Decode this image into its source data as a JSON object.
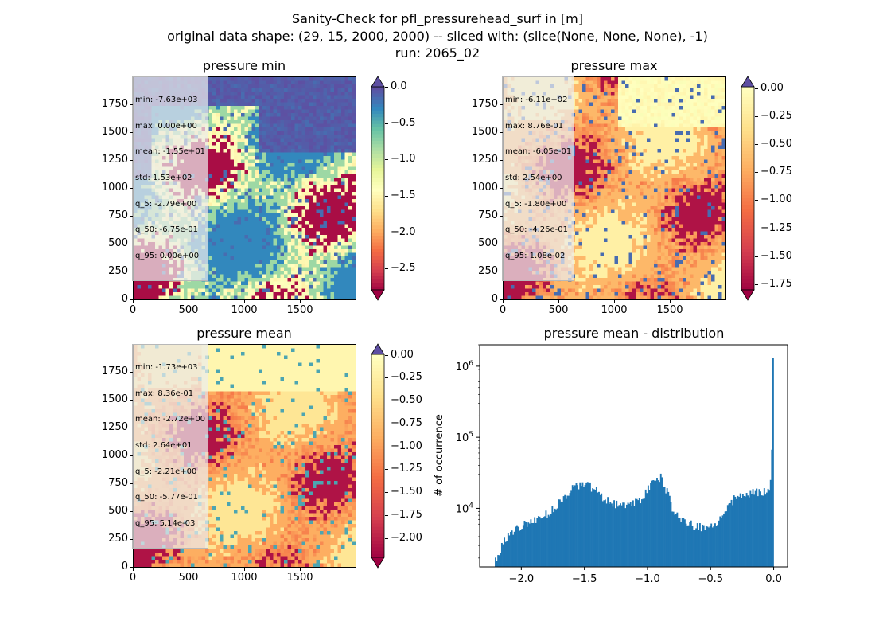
{
  "figure": {
    "title_lines": [
      "Sanity-Check for pfl_pressurehead_surf in [m]",
      "original data shape: (29, 15, 2000, 2000) -- sliced with: (slice(None, None, None), -1)",
      "run: 2065_02"
    ]
  },
  "panels": [
    {
      "title": "pressure min",
      "stats": [
        "min: -7.63e+03",
        "max: 0.00e+00",
        "mean: -1.55e+01",
        "std: 1.53e+02",
        "q_5: -2.79e+00",
        "q_50: -6.75e-01",
        "q_95: 0.00e+00"
      ],
      "x_ticks": [
        "0",
        "500",
        "1000",
        "1500"
      ],
      "y_ticks": [
        "0",
        "250",
        "500",
        "750",
        "1000",
        "1250",
        "1500",
        "1750"
      ],
      "colorbar_ticks": [
        "0.0",
        "−0.5",
        "−1.0",
        "−1.5",
        "−2.0",
        "−2.5"
      ],
      "colorbar_range": [
        -2.79,
        0.0
      ],
      "colorbar_extend": "both"
    },
    {
      "title": "pressure max",
      "stats": [
        "min: -6.11e+02",
        "max: 8.76e-01",
        "mean: -6.05e-01",
        "std: 2.54e+00",
        "q_5: -1.80e+00",
        "q_50: -4.26e-01",
        "q_95: 1.08e-02"
      ],
      "x_ticks": [
        "0",
        "500",
        "1000",
        "1500"
      ],
      "y_ticks": [
        "0",
        "250",
        "500",
        "750",
        "1000",
        "1250",
        "1500",
        "1750"
      ],
      "colorbar_ticks": [
        "0.00",
        "−0.25",
        "−0.50",
        "−0.75",
        "−1.00",
        "−1.25",
        "−1.50",
        "−1.75"
      ],
      "colorbar_range": [
        -1.8,
        0.0108
      ],
      "colorbar_extend": "both"
    },
    {
      "title": "pressure mean",
      "stats": [
        "min: -1.73e+03",
        "max: 8.36e-01",
        "mean: -2.72e+00",
        "std: 2.64e+01",
        "q_5: -2.21e+00",
        "q_50: -5.77e-01",
        "q_95: 5.14e-03"
      ],
      "x_ticks": [
        "0",
        "500",
        "1000",
        "1500"
      ],
      "y_ticks": [
        "0",
        "250",
        "500",
        "750",
        "1000",
        "1250",
        "1500",
        "1750"
      ],
      "colorbar_ticks": [
        "0.00",
        "−0.25",
        "−0.50",
        "−0.75",
        "−1.00",
        "−1.25",
        "−1.50",
        "−1.75",
        "−2.00"
      ],
      "colorbar_range": [
        -2.21,
        0.00514
      ],
      "colorbar_extend": "both"
    }
  ],
  "histogram": {
    "title": "pressure mean - distribution",
    "ylabel": "# of occurrence",
    "x_ticks": [
      "−2.0",
      "−1.5",
      "−1.0",
      "−0.5",
      "0.0"
    ],
    "y_ticks": [
      "10^4",
      "10^5",
      "10^6"
    ]
  },
  "chart_data": {
    "type": "bar",
    "title": "pressure mean - distribution",
    "xlabel": "",
    "ylabel": "# of occurrence",
    "yscale": "log",
    "xlim": [
      -2.33,
      0.11
    ],
    "ylim": [
      1500,
      2000000
    ],
    "bin_width": 0.01,
    "bin_range": [
      -2.21,
      0.0
    ],
    "x": [
      -2.2,
      -2.15,
      -2.1,
      -2.05,
      -2.0,
      -1.95,
      -1.9,
      -1.85,
      -1.8,
      -1.75,
      -1.7,
      -1.65,
      -1.6,
      -1.55,
      -1.5,
      -1.45,
      -1.4,
      -1.35,
      -1.3,
      -1.25,
      -1.2,
      -1.15,
      -1.1,
      -1.05,
      -1.0,
      -0.95,
      -0.9,
      -0.85,
      -0.8,
      -0.75,
      -0.7,
      -0.65,
      -0.6,
      -0.55,
      -0.5,
      -0.45,
      -0.4,
      -0.35,
      -0.3,
      -0.25,
      -0.2,
      -0.15,
      -0.1,
      -0.05,
      -0.02,
      0.0
    ],
    "values": [
      2000,
      3200,
      4300,
      4900,
      5600,
      6100,
      6800,
      7500,
      8200,
      9500,
      12000,
      15500,
      19000,
      21000,
      22000,
      20000,
      17000,
      14000,
      12000,
      11500,
      11500,
      12000,
      12500,
      14000,
      18000,
      24000,
      28000,
      18000,
      9500,
      7500,
      6500,
      5800,
      5600,
      5500,
      5500,
      6000,
      7500,
      11000,
      14500,
      15500,
      16000,
      16500,
      17000,
      16500,
      25000,
      1300000
    ]
  },
  "colormaps": {
    "spectral": [
      "#9e0142",
      "#d53e4f",
      "#f46d43",
      "#fdae61",
      "#fee08b",
      "#ffffbf",
      "#e6f598",
      "#abdda4",
      "#66c2a5",
      "#3288bd",
      "#5e4fa2"
    ],
    "bar_color": "#1f77b4"
  }
}
